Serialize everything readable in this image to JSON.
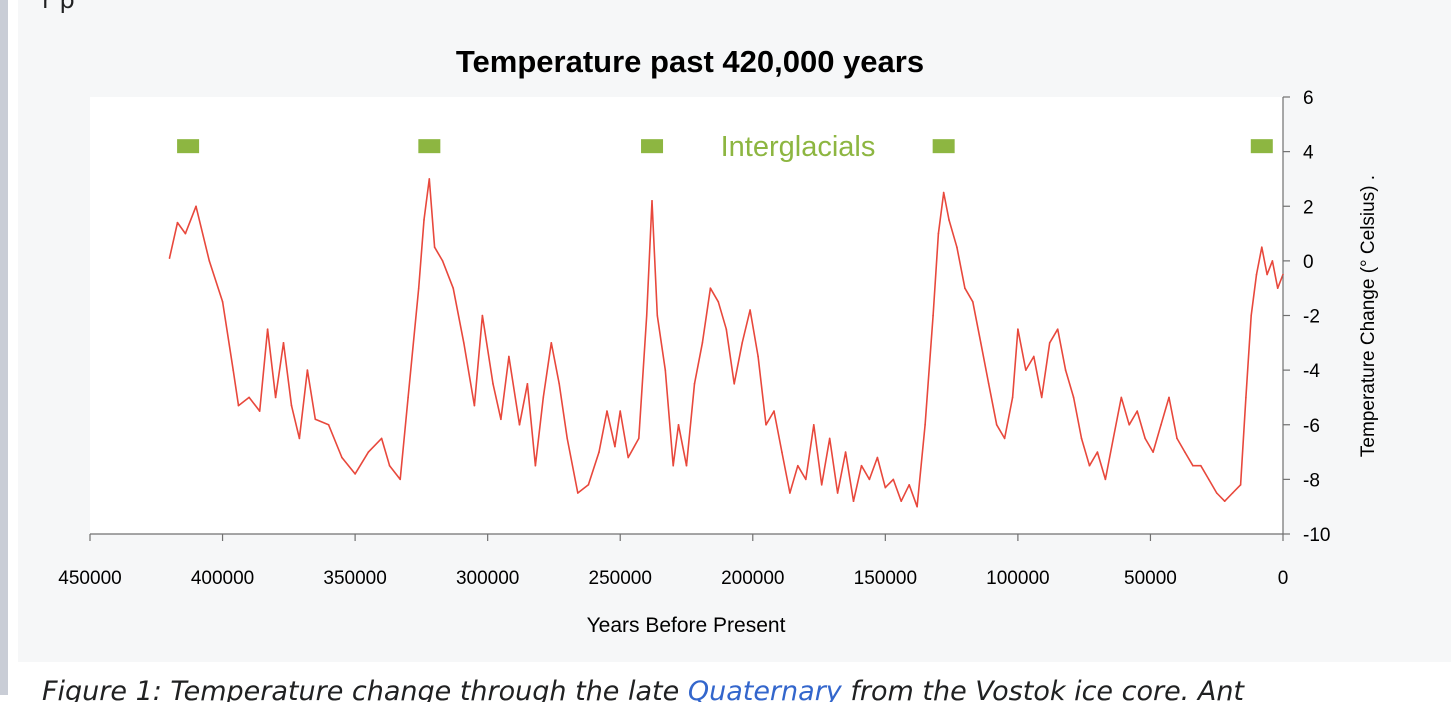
{
  "article": {
    "top_text_fragment": "r p",
    "caption": {
      "prefix": "Figure 1: Temperature change through the late ",
      "link_text": "Quaternary",
      "suffix": " from the Vostok ice core. Ant"
    }
  },
  "chart_data": {
    "type": "line",
    "title": "Temperature past 420,000 years",
    "xlabel": "Years Before Present",
    "ylabel": "Temperature Change (° Celsius) .",
    "xlim": [
      450000,
      0
    ],
    "ylim": [
      -10,
      6
    ],
    "x_ticks": [
      "450000",
      "400000",
      "350000",
      "300000",
      "250000",
      "200000",
      "150000",
      "100000",
      "50000",
      "0"
    ],
    "y_ticks": [
      "6",
      "4",
      "2",
      "0",
      "-2",
      "-4",
      "-6",
      "-8",
      "-10"
    ],
    "grid": false,
    "line_color": "#e8483c",
    "annotation": {
      "text": "Interglacials",
      "color": "#8db641"
    },
    "interglacial_markers": [
      {
        "x": 413000,
        "y": 4.2
      },
      {
        "x": 322000,
        "y": 4.2
      },
      {
        "x": 238000,
        "y": 4.2
      },
      {
        "x": 128000,
        "y": 4.2
      },
      {
        "x": 8000,
        "y": 4.2
      }
    ],
    "series": [
      {
        "values": [
          [
            420000,
            0.1
          ],
          [
            417000,
            1.4
          ],
          [
            414000,
            1.0
          ],
          [
            410000,
            2.0
          ],
          [
            405000,
            0.0
          ],
          [
            400000,
            -1.5
          ],
          [
            396000,
            -4.0
          ],
          [
            394000,
            -5.3
          ],
          [
            390000,
            -5.0
          ],
          [
            386000,
            -5.5
          ],
          [
            383000,
            -2.5
          ],
          [
            380000,
            -5.0
          ],
          [
            377000,
            -3.0
          ],
          [
            374000,
            -5.3
          ],
          [
            371000,
            -6.5
          ],
          [
            368000,
            -4.0
          ],
          [
            365000,
            -5.8
          ],
          [
            360000,
            -6.0
          ],
          [
            355000,
            -7.2
          ],
          [
            350000,
            -7.8
          ],
          [
            345000,
            -7.0
          ],
          [
            340000,
            -6.5
          ],
          [
            337000,
            -7.5
          ],
          [
            333000,
            -8.0
          ],
          [
            330000,
            -5.0
          ],
          [
            326000,
            -1.0
          ],
          [
            324000,
            1.5
          ],
          [
            322000,
            3.0
          ],
          [
            320000,
            0.5
          ],
          [
            317000,
            0.0
          ],
          [
            313000,
            -1.0
          ],
          [
            309000,
            -3.0
          ],
          [
            305000,
            -5.3
          ],
          [
            302000,
            -2.0
          ],
          [
            298000,
            -4.5
          ],
          [
            295000,
            -5.8
          ],
          [
            292000,
            -3.5
          ],
          [
            288000,
            -6.0
          ],
          [
            285000,
            -4.5
          ],
          [
            282000,
            -7.5
          ],
          [
            279000,
            -5.0
          ],
          [
            276000,
            -3.0
          ],
          [
            273000,
            -4.5
          ],
          [
            270000,
            -6.5
          ],
          [
            266000,
            -8.5
          ],
          [
            262000,
            -8.2
          ],
          [
            258000,
            -7.0
          ],
          [
            255000,
            -5.5
          ],
          [
            252000,
            -6.8
          ],
          [
            250000,
            -5.5
          ],
          [
            247000,
            -7.2
          ],
          [
            243000,
            -6.5
          ],
          [
            240000,
            -2.0
          ],
          [
            238000,
            2.2
          ],
          [
            236000,
            -2.0
          ],
          [
            233000,
            -4.0
          ],
          [
            230000,
            -7.5
          ],
          [
            228000,
            -6.0
          ],
          [
            225000,
            -7.5
          ],
          [
            222000,
            -4.5
          ],
          [
            219000,
            -3.0
          ],
          [
            216000,
            -1.0
          ],
          [
            213000,
            -1.5
          ],
          [
            210000,
            -2.5
          ],
          [
            207000,
            -4.5
          ],
          [
            204000,
            -3.0
          ],
          [
            201000,
            -1.8
          ],
          [
            198000,
            -3.5
          ],
          [
            195000,
            -6.0
          ],
          [
            192000,
            -5.5
          ],
          [
            189000,
            -7.0
          ],
          [
            186000,
            -8.5
          ],
          [
            183000,
            -7.5
          ],
          [
            180000,
            -8.0
          ],
          [
            177000,
            -6.0
          ],
          [
            174000,
            -8.2
          ],
          [
            171000,
            -6.5
          ],
          [
            168000,
            -8.5
          ],
          [
            165000,
            -7.0
          ],
          [
            162000,
            -8.8
          ],
          [
            159000,
            -7.5
          ],
          [
            156000,
            -8.0
          ],
          [
            153000,
            -7.2
          ],
          [
            150000,
            -8.3
          ],
          [
            147000,
            -8.0
          ],
          [
            144000,
            -8.8
          ],
          [
            141000,
            -8.2
          ],
          [
            138000,
            -9.0
          ],
          [
            135000,
            -6.0
          ],
          [
            132000,
            -2.0
          ],
          [
            130000,
            1.0
          ],
          [
            128000,
            2.5
          ],
          [
            126000,
            1.5
          ],
          [
            123000,
            0.5
          ],
          [
            120000,
            -1.0
          ],
          [
            117000,
            -1.5
          ],
          [
            114000,
            -3.0
          ],
          [
            111000,
            -4.5
          ],
          [
            108000,
            -6.0
          ],
          [
            105000,
            -6.5
          ],
          [
            102000,
            -5.0
          ],
          [
            100000,
            -2.5
          ],
          [
            97000,
            -4.0
          ],
          [
            94000,
            -3.5
          ],
          [
            91000,
            -5.0
          ],
          [
            88000,
            -3.0
          ],
          [
            85000,
            -2.5
          ],
          [
            82000,
            -4.0
          ],
          [
            79000,
            -5.0
          ],
          [
            76000,
            -6.5
          ],
          [
            73000,
            -7.5
          ],
          [
            70000,
            -7.0
          ],
          [
            67000,
            -8.0
          ],
          [
            64000,
            -6.5
          ],
          [
            61000,
            -5.0
          ],
          [
            58000,
            -6.0
          ],
          [
            55000,
            -5.5
          ],
          [
            52000,
            -6.5
          ],
          [
            49000,
            -7.0
          ],
          [
            46000,
            -6.0
          ],
          [
            43000,
            -5.0
          ],
          [
            40000,
            -6.5
          ],
          [
            37000,
            -7.0
          ],
          [
            34000,
            -7.5
          ],
          [
            31000,
            -7.5
          ],
          [
            28000,
            -8.0
          ],
          [
            25000,
            -8.5
          ],
          [
            22000,
            -8.8
          ],
          [
            19000,
            -8.5
          ],
          [
            16000,
            -8.2
          ],
          [
            14000,
            -5.0
          ],
          [
            12000,
            -2.0
          ],
          [
            10000,
            -0.5
          ],
          [
            8000,
            0.5
          ],
          [
            6000,
            -0.5
          ],
          [
            4000,
            0.0
          ],
          [
            2000,
            -1.0
          ],
          [
            0,
            -0.5
          ]
        ]
      }
    ]
  }
}
